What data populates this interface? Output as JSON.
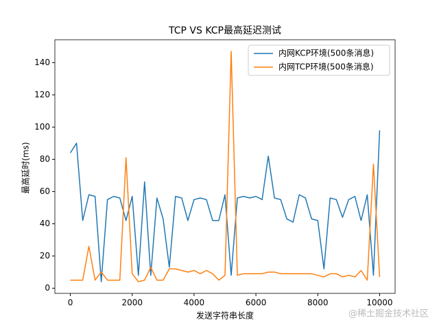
{
  "chart_data": {
    "type": "line",
    "title": "TCP VS KCP最高延迟测试",
    "x_label": "发送字符串长度",
    "y_label": "最高延时(ms)",
    "x": [
      0,
      200,
      400,
      600,
      800,
      1000,
      1200,
      1400,
      1600,
      1800,
      2000,
      2200,
      2400,
      2600,
      2800,
      3000,
      3200,
      3400,
      3600,
      3800,
      4000,
      4200,
      4400,
      4600,
      4800,
      5000,
      5200,
      5400,
      5600,
      5800,
      6000,
      6200,
      6400,
      6600,
      6800,
      7000,
      7200,
      7400,
      7600,
      7800,
      8000,
      8200,
      8400,
      8600,
      8800,
      9000,
      9200,
      9400,
      9600,
      9800,
      10000
    ],
    "series": [
      {
        "name": "内网KCP环境(500条消息)",
        "color": "#1f77b4",
        "values": [
          84,
          90,
          42,
          58,
          57,
          4,
          55,
          57,
          56,
          42,
          57,
          8,
          66,
          8,
          56,
          43,
          13,
          57,
          56,
          42,
          55,
          56,
          55,
          42,
          42,
          58,
          8,
          56,
          57,
          56,
          57,
          55,
          82,
          56,
          55,
          43,
          41,
          58,
          56,
          43,
          42,
          12,
          56,
          55,
          44,
          55,
          57,
          42,
          58,
          8,
          98
        ]
      },
      {
        "name": "内网TCP环境(500条消息)",
        "color": "#ff7f0e",
        "values": [
          5,
          5,
          5,
          26,
          5,
          10,
          5,
          5,
          5,
          81,
          9,
          4,
          5,
          13,
          5,
          5,
          12,
          12,
          11,
          10,
          11,
          9,
          11,
          9,
          5,
          8,
          147,
          8,
          9,
          9,
          9,
          9,
          10,
          10,
          9,
          9,
          9,
          9,
          9,
          9,
          8,
          7,
          9,
          9,
          7,
          8,
          7,
          11,
          5,
          77,
          7
        ]
      }
    ],
    "xlim": [
      -500,
      10500
    ],
    "ylim": [
      -3.2,
      154.2
    ],
    "xticks": [
      0,
      2000,
      4000,
      6000,
      8000,
      10000
    ],
    "yticks": [
      0,
      20,
      40,
      60,
      80,
      100,
      120,
      140
    ],
    "legend": "upper right",
    "watermark": "@稀土掘金技术社区"
  }
}
